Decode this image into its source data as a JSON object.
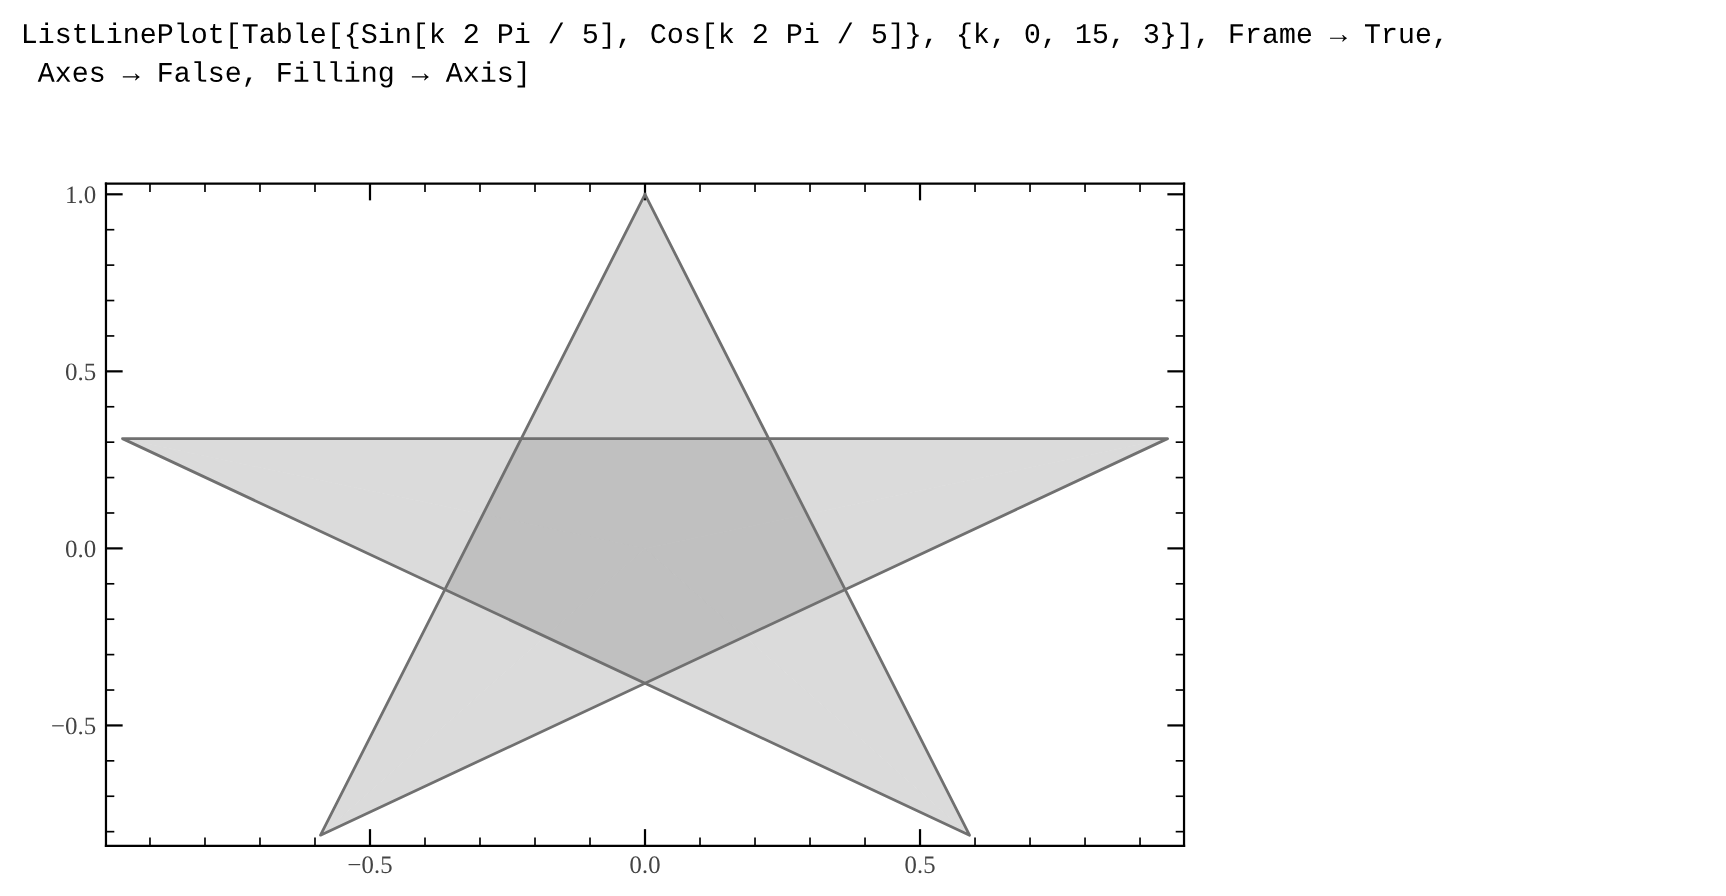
{
  "chart_data": {
    "type": "area",
    "title": "ListLinePlot[Table[{Sin[k 2 Pi / 5], Cos[k 2 Pi / 5]}, {k, 0, 15, 3}], Frame → True,\n Axes → False, Filling → Axis]",
    "x": [
      0,
      -0.59,
      0.95,
      -0.95,
      0.59,
      0
    ],
    "series": [
      {
        "color": "#707070",
        "values": [
          1,
          -0.81,
          0.31,
          0.31,
          -0.81,
          1
        ]
      }
    ],
    "xlim": [
      -0.98,
      0.98
    ],
    "ylim": [
      -0.84,
      1.03
    ],
    "xticks": [
      {
        "value": -0.5,
        "label": "−0.5"
      },
      {
        "value": 0,
        "label": "0.0"
      },
      {
        "value": 0.5,
        "label": "0.5"
      }
    ],
    "yticks": [
      {
        "value": -0.5,
        "label": "−0.5"
      },
      {
        "value": 0,
        "label": "0.0"
      },
      {
        "value": 0.5,
        "label": "0.5"
      },
      {
        "value": 1,
        "label": "1.0"
      }
    ]
  }
}
